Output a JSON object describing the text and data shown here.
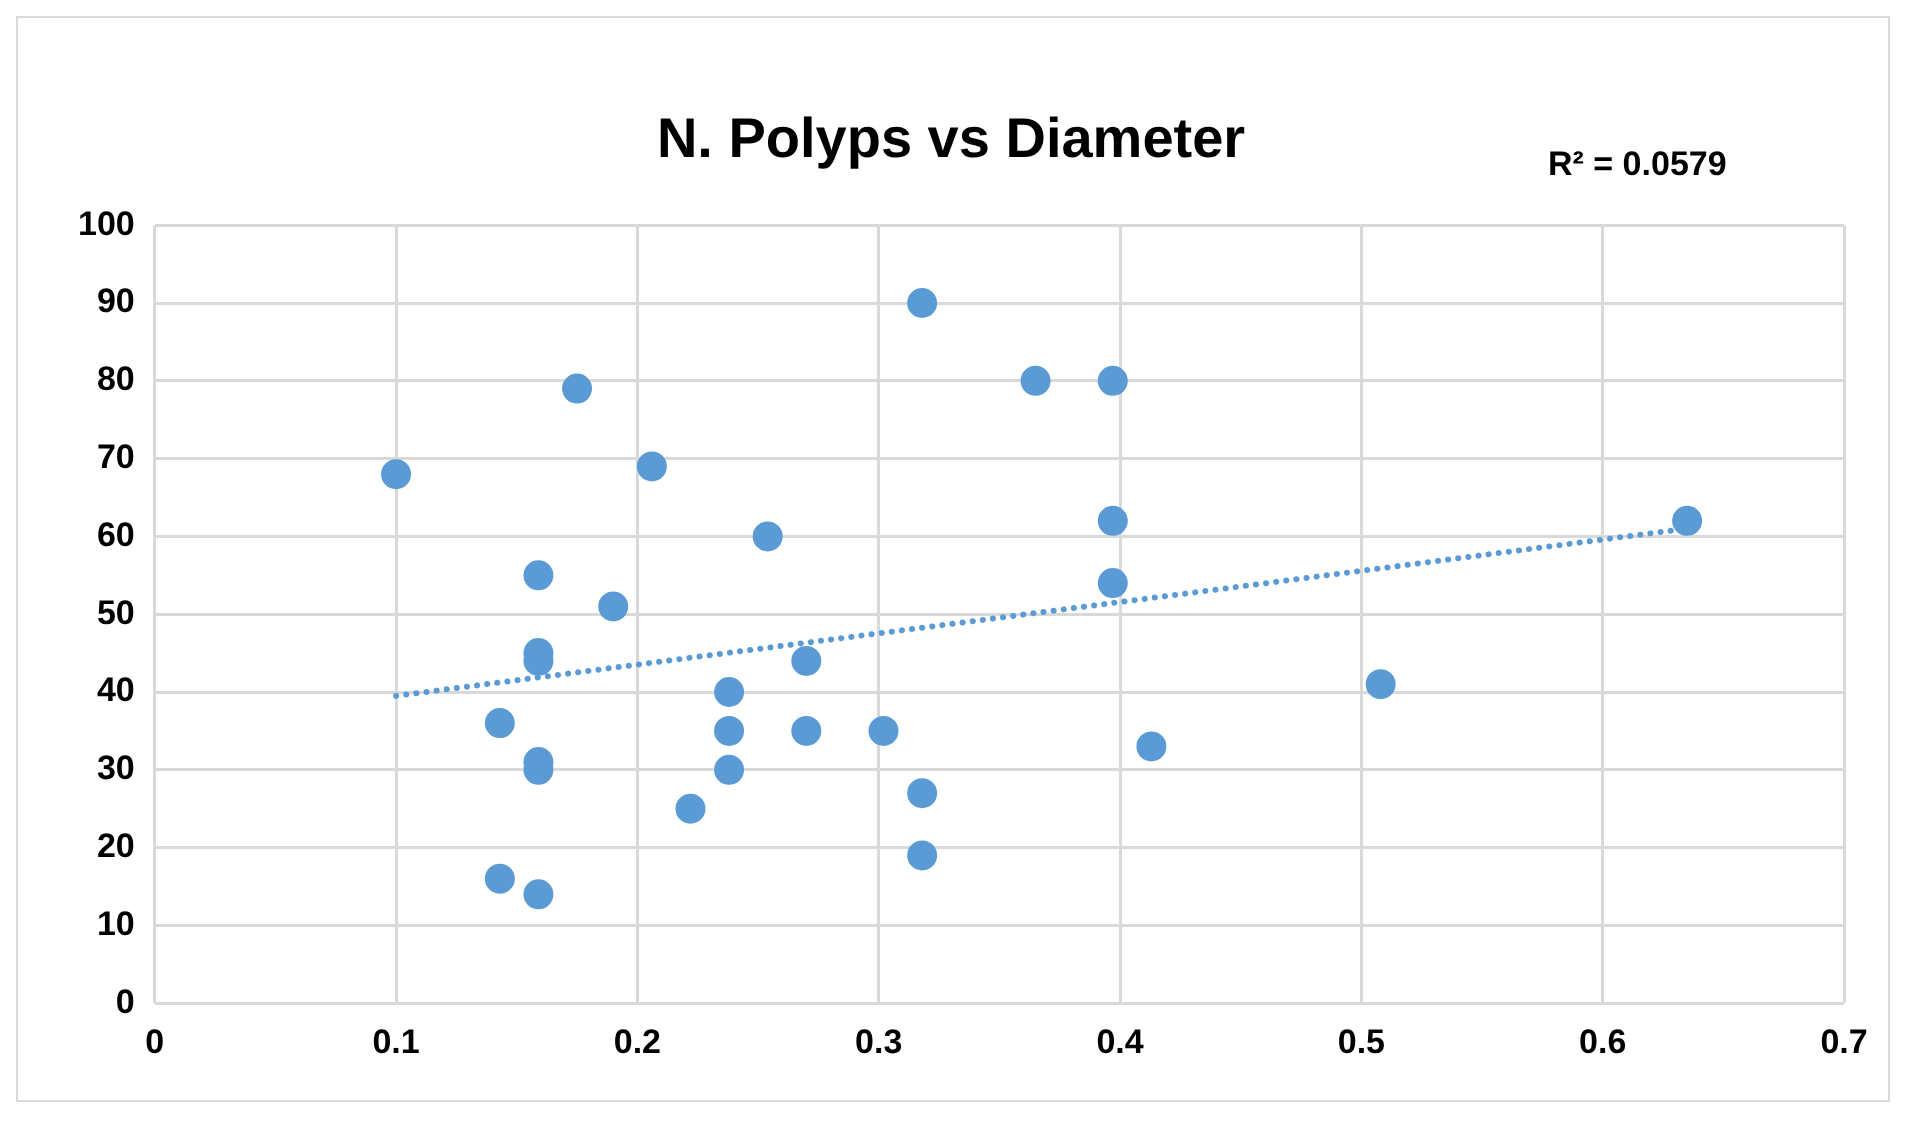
{
  "chart_data": {
    "type": "scatter",
    "title": "N. Polyps vs Diameter",
    "annotations": [
      "R² = 0.0579"
    ],
    "xlim": [
      0,
      0.7
    ],
    "xticks": [
      0,
      0.1,
      0.2,
      0.3,
      0.4,
      0.5,
      0.6,
      0.7
    ],
    "ylim": [
      0,
      100
    ],
    "yticks": [
      0,
      10,
      20,
      30,
      40,
      50,
      60,
      70,
      80,
      90,
      100
    ],
    "grid": true,
    "marker": "circle",
    "series": [
      {
        "color": "#5b9bd5",
        "x": [
          0.1,
          0.143,
          0.143,
          0.159,
          0.159,
          0.159,
          0.159,
          0.159,
          0.159,
          0.175,
          0.19,
          0.206,
          0.222,
          0.238,
          0.238,
          0.238,
          0.254,
          0.27,
          0.27,
          0.302,
          0.318,
          0.318,
          0.318,
          0.365,
          0.397,
          0.397,
          0.397,
          0.413,
          0.508,
          0.635
        ],
        "values": [
          68,
          36,
          16,
          55,
          45,
          44,
          31,
          30,
          14,
          79,
          51,
          69,
          25,
          40,
          35,
          30,
          60,
          44,
          35,
          35,
          90,
          27,
          19,
          80,
          80,
          62,
          54,
          33,
          41,
          62
        ]
      },
      {
        "type": "line",
        "color": "#5b9bd5",
        "line_style": "dotted",
        "marker": "none",
        "x": [
          0.1,
          0.635
        ],
        "values": [
          39.5,
          61
        ]
      }
    ]
  }
}
